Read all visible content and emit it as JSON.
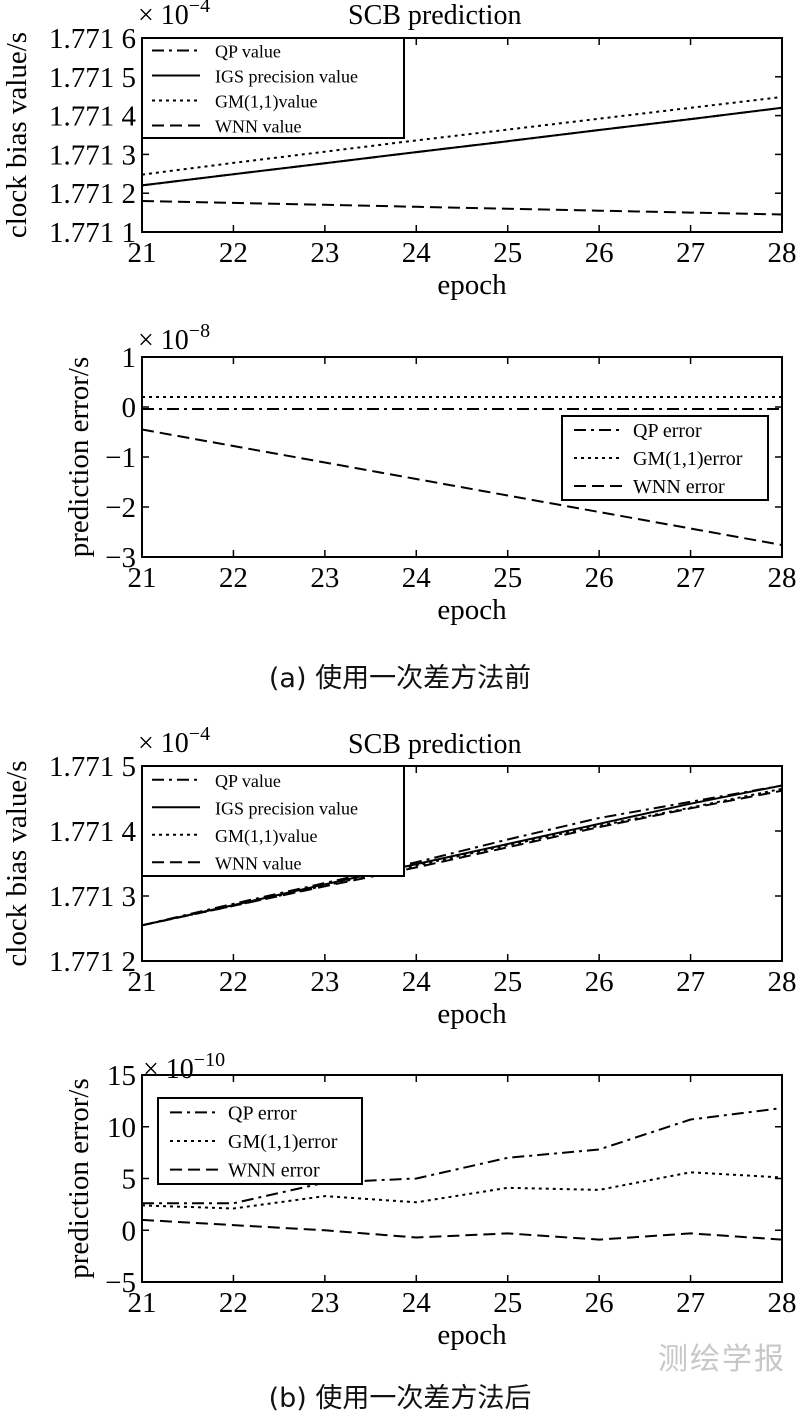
{
  "captions": {
    "a": "(a) 使用一次差方法前",
    "b": "(b) 使用一次差方法后"
  },
  "watermark": "测绘学报",
  "chart_data": [
    {
      "type": "line",
      "title": "SCB prediction",
      "xlabel": "epoch",
      "ylabel": "clock bias value/s",
      "xlim": [
        21,
        28
      ],
      "ylim": [
        1,
        6
      ],
      "xticks": [
        21,
        22,
        23,
        24,
        25,
        26,
        27,
        28
      ],
      "yticks": [
        1,
        2,
        3,
        4,
        5,
        6
      ],
      "ytick_labels": [
        "1.771 1",
        "1.771 2",
        "1.771 3",
        "1.771 4",
        "1.771 5",
        "1.771 6"
      ],
      "exponent_label": "× 10",
      "exponent": "−4",
      "grid": false,
      "legend_position": "top-left",
      "x": [
        21,
        22,
        23,
        24,
        25,
        26,
        27,
        28
      ],
      "series": [
        {
          "name": "QP value",
          "style": "dashdot",
          "values": [
            2.2,
            2.49,
            2.77,
            3.06,
            3.34,
            3.63,
            3.91,
            4.2
          ]
        },
        {
          "name": "IGS precision value",
          "style": "solid",
          "values": [
            2.2,
            2.49,
            2.77,
            3.06,
            3.34,
            3.63,
            3.91,
            4.2
          ]
        },
        {
          "name": "GM(1,1)value",
          "style": "dotted",
          "values": [
            2.48,
            2.78,
            3.07,
            3.36,
            3.64,
            3.92,
            4.2,
            4.48
          ]
        },
        {
          "name": "WNN value",
          "style": "dashed",
          "values": [
            1.8,
            1.75,
            1.7,
            1.65,
            1.6,
            1.55,
            1.5,
            1.45
          ]
        }
      ]
    },
    {
      "type": "line",
      "title": "",
      "xlabel": "epoch",
      "ylabel": "prediction error/s",
      "xlim": [
        21,
        28
      ],
      "ylim": [
        -3,
        1
      ],
      "xticks": [
        21,
        22,
        23,
        24,
        25,
        26,
        27,
        28
      ],
      "yticks": [
        -3,
        -2,
        -1,
        0,
        1
      ],
      "ytick_labels": [
        "−3",
        "−2",
        "−1",
        "0",
        "1"
      ],
      "exponent_label": "× 10",
      "exponent": "−8",
      "grid": false,
      "legend_position": "right",
      "x": [
        21,
        22,
        23,
        24,
        25,
        26,
        27,
        28
      ],
      "series": [
        {
          "name": "QP error",
          "style": "dashdot",
          "values": [
            -0.04,
            -0.04,
            -0.04,
            -0.04,
            -0.04,
            -0.04,
            -0.04,
            -0.04
          ]
        },
        {
          "name": "GM(1,1)error",
          "style": "dotted",
          "values": [
            0.2,
            0.2,
            0.2,
            0.2,
            0.2,
            0.2,
            0.2,
            0.2
          ]
        },
        {
          "name": "WNN error",
          "style": "dashed",
          "values": [
            -0.45,
            -0.78,
            -1.11,
            -1.44,
            -1.77,
            -2.1,
            -2.43,
            -2.76
          ]
        }
      ]
    },
    {
      "type": "line",
      "title": "SCB prediction",
      "xlabel": "epoch",
      "ylabel": "clock bias value/s",
      "xlim": [
        21,
        28
      ],
      "ylim": [
        2,
        5
      ],
      "xticks": [
        21,
        22,
        23,
        24,
        25,
        26,
        27,
        28
      ],
      "yticks": [
        2,
        3,
        4,
        5
      ],
      "ytick_labels": [
        "1.771 2",
        "1.771 3",
        "1.771 4",
        "1.771 5"
      ],
      "exponent_label": "× 10",
      "exponent": "−4",
      "grid": false,
      "legend_position": "top-left",
      "x": [
        21,
        22,
        23,
        24,
        25,
        26,
        27,
        28
      ],
      "series": [
        {
          "name": "QP value",
          "style": "dashdot",
          "values": [
            2.55,
            2.88,
            3.2,
            3.52,
            3.87,
            4.2,
            4.45,
            4.7
          ]
        },
        {
          "name": "IGS precision value",
          "style": "solid",
          "values": [
            2.55,
            2.86,
            3.18,
            3.49,
            3.8,
            4.11,
            4.42,
            4.7
          ]
        },
        {
          "name": "GM(1,1)value",
          "style": "dotted",
          "values": [
            2.55,
            2.85,
            3.16,
            3.47,
            3.78,
            4.08,
            4.36,
            4.65
          ]
        },
        {
          "name": "WNN value",
          "style": "dashed",
          "values": [
            2.55,
            2.85,
            3.15,
            3.44,
            3.75,
            4.06,
            4.35,
            4.62
          ]
        }
      ]
    },
    {
      "type": "line",
      "title": "",
      "xlabel": "epoch",
      "ylabel": "prediction error/s",
      "xlim": [
        21,
        28
      ],
      "ylim": [
        -5,
        15
      ],
      "xticks": [
        21,
        22,
        23,
        24,
        25,
        26,
        27,
        28
      ],
      "yticks": [
        -5,
        0,
        5,
        10,
        15
      ],
      "ytick_labels": [
        "−5",
        "0",
        "5",
        "10",
        "15"
      ],
      "exponent_label": "× 10",
      "exponent": "−10",
      "grid": false,
      "legend_position": "top-left",
      "x": [
        21,
        22,
        23,
        24,
        25,
        26,
        27,
        28
      ],
      "series": [
        {
          "name": "QP error",
          "style": "dashdot",
          "values": [
            2.6,
            2.6,
            4.6,
            5.0,
            7.0,
            7.8,
            10.7,
            11.8
          ]
        },
        {
          "name": "GM(1,1)error",
          "style": "dotted",
          "values": [
            2.4,
            2.1,
            3.3,
            2.7,
            4.1,
            3.9,
            5.6,
            5.1
          ]
        },
        {
          "name": "WNN error",
          "style": "dashed",
          "values": [
            1.0,
            0.5,
            0.0,
            -0.7,
            -0.3,
            -0.9,
            -0.3,
            -0.9
          ]
        }
      ]
    }
  ]
}
